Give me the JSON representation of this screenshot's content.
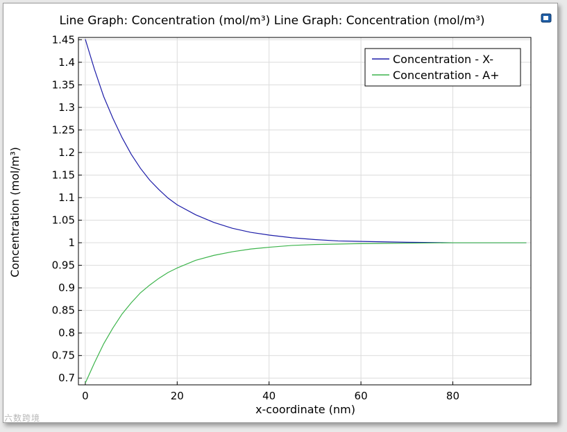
{
  "chart_data": {
    "type": "line",
    "title": "Line Graph: Concentration (mol/m³)  Line Graph: Concentration (mol/m³)",
    "xlabel": "x-coordinate (nm)",
    "ylabel": "Concentration (mol/m³)",
    "xlim": [
      -1.5,
      97
    ],
    "ylim": [
      0.685,
      1.455
    ],
    "xticks": [
      0,
      20,
      40,
      60,
      80
    ],
    "yticks": [
      0.7,
      0.75,
      0.8,
      0.85,
      0.9,
      0.95,
      1,
      1.05,
      1.1,
      1.15,
      1.2,
      1.25,
      1.3,
      1.35,
      1.4,
      1.45
    ],
    "grid": true,
    "legend_position": "top-right",
    "series": [
      {
        "name": "Concentration - X-",
        "color": "#1c1ca8",
        "x": [
          0,
          2,
          4,
          6,
          8,
          10,
          12,
          14,
          16,
          18,
          20,
          24,
          28,
          32,
          36,
          40,
          45,
          50,
          55,
          60,
          70,
          80,
          90,
          96
        ],
        "y": [
          1.451,
          1.384,
          1.324,
          1.276,
          1.233,
          1.196,
          1.165,
          1.139,
          1.118,
          1.099,
          1.084,
          1.062,
          1.045,
          1.032,
          1.023,
          1.017,
          1.011,
          1.007,
          1.004,
          1.003,
          1.001,
          1.0,
          1.0,
          1.0
        ]
      },
      {
        "name": "Concentration - A+",
        "color": "#3cb44b",
        "x": [
          0,
          2,
          4,
          6,
          8,
          10,
          12,
          14,
          16,
          18,
          20,
          24,
          28,
          32,
          36,
          40,
          45,
          50,
          55,
          60,
          70,
          80,
          90,
          96
        ],
        "y": [
          0.689,
          0.734,
          0.776,
          0.811,
          0.842,
          0.867,
          0.889,
          0.906,
          0.921,
          0.934,
          0.944,
          0.961,
          0.972,
          0.98,
          0.986,
          0.99,
          0.994,
          0.996,
          0.997,
          0.998,
          0.999,
          1.0,
          1.0,
          1.0
        ]
      }
    ]
  },
  "toolbar": {
    "icon": "window-icon"
  },
  "watermark": "六数跨境"
}
